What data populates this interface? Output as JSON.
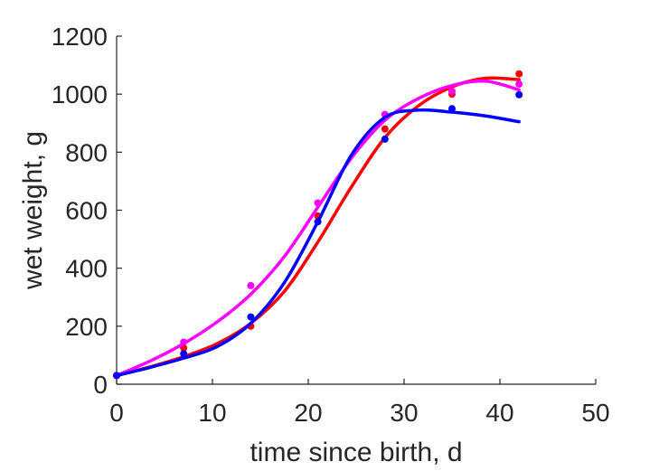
{
  "chart_data": {
    "type": "scatter",
    "title": "",
    "xlabel": "time since birth, d",
    "ylabel": "wet weight, g",
    "xlim": [
      0,
      50
    ],
    "ylim": [
      0,
      1200
    ],
    "xticks": [
      0,
      10,
      20,
      30,
      40,
      50
    ],
    "yticks": [
      0,
      200,
      400,
      600,
      800,
      1000,
      1200
    ],
    "grid": false,
    "legend": "none",
    "series": [
      {
        "color": "#ff0000",
        "points": [
          {
            "x": 0,
            "y": 30
          },
          {
            "x": 7,
            "y": 125
          },
          {
            "x": 14,
            "y": 200
          },
          {
            "x": 21,
            "y": 580
          },
          {
            "x": 28,
            "y": 880
          },
          {
            "x": 35,
            "y": 1000
          },
          {
            "x": 42,
            "y": 1070
          }
        ],
        "curve": [
          {
            "x": 0,
            "y": 30
          },
          {
            "x": 3.5,
            "y": 60
          },
          {
            "x": 7,
            "y": 95
          },
          {
            "x": 10.5,
            "y": 140
          },
          {
            "x": 14,
            "y": 210
          },
          {
            "x": 17.5,
            "y": 320
          },
          {
            "x": 21,
            "y": 490
          },
          {
            "x": 24.5,
            "y": 680
          },
          {
            "x": 28,
            "y": 850
          },
          {
            "x": 31.5,
            "y": 960
          },
          {
            "x": 35,
            "y": 1025
          },
          {
            "x": 38.5,
            "y": 1055
          },
          {
            "x": 42,
            "y": 1050
          }
        ]
      },
      {
        "color": "#ff00ff",
        "points": [
          {
            "x": 0,
            "y": 30
          },
          {
            "x": 7,
            "y": 145
          },
          {
            "x": 14,
            "y": 340
          },
          {
            "x": 21,
            "y": 625
          },
          {
            "x": 28,
            "y": 930
          },
          {
            "x": 35,
            "y": 1010
          },
          {
            "x": 42,
            "y": 1035
          }
        ],
        "curve": [
          {
            "x": 0,
            "y": 30
          },
          {
            "x": 3.5,
            "y": 80
          },
          {
            "x": 7,
            "y": 140
          },
          {
            "x": 10.5,
            "y": 215
          },
          {
            "x": 14,
            "y": 310
          },
          {
            "x": 17.5,
            "y": 440
          },
          {
            "x": 21,
            "y": 610
          },
          {
            "x": 24.5,
            "y": 780
          },
          {
            "x": 28,
            "y": 910
          },
          {
            "x": 31.5,
            "y": 985
          },
          {
            "x": 35,
            "y": 1030
          },
          {
            "x": 38.5,
            "y": 1045
          },
          {
            "x": 42,
            "y": 1015
          }
        ]
      },
      {
        "color": "#0000ff",
        "points": [
          {
            "x": 0,
            "y": 30
          },
          {
            "x": 7,
            "y": 105
          },
          {
            "x": 14,
            "y": 232
          },
          {
            "x": 21,
            "y": 560
          },
          {
            "x": 28,
            "y": 845
          },
          {
            "x": 35,
            "y": 950
          },
          {
            "x": 42,
            "y": 998
          }
        ],
        "curve": [
          {
            "x": 0,
            "y": 30
          },
          {
            "x": 3.5,
            "y": 58
          },
          {
            "x": 7,
            "y": 90
          },
          {
            "x": 10.5,
            "y": 130
          },
          {
            "x": 14,
            "y": 210
          },
          {
            "x": 17.5,
            "y": 350
          },
          {
            "x": 21,
            "y": 560
          },
          {
            "x": 24.5,
            "y": 790
          },
          {
            "x": 28,
            "y": 920
          },
          {
            "x": 31.5,
            "y": 945
          },
          {
            "x": 35,
            "y": 938
          },
          {
            "x": 38.5,
            "y": 925
          },
          {
            "x": 42,
            "y": 905
          }
        ]
      }
    ]
  }
}
